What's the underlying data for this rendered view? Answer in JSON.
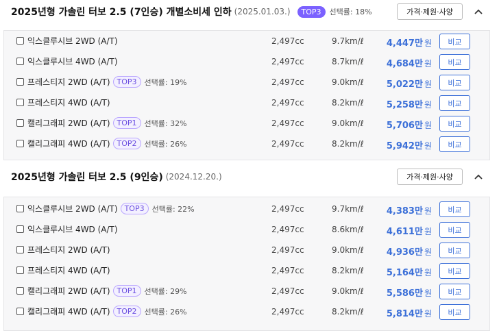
{
  "sections": [
    {
      "title": "2025년형 가솔린 터보 2.5 (7인승) 개별소비세 인하",
      "date": "(2025.01.03.)",
      "badge": "TOP3",
      "select_rate": "선택률: 18%",
      "spec_button": "가격·제원·사양",
      "rows": [
        {
          "name": "익스클루시브 2WD (A/T)",
          "badge": "",
          "rate": "",
          "displacement": "2,497cc",
          "efficiency": "9.7km/ℓ",
          "price": "4,447만",
          "won": "원",
          "compare": "비교"
        },
        {
          "name": "익스클루시브 4WD (A/T)",
          "badge": "",
          "rate": "",
          "displacement": "2,497cc",
          "efficiency": "8.7km/ℓ",
          "price": "4,684만",
          "won": "원",
          "compare": "비교"
        },
        {
          "name": "프레스티지 2WD (A/T)",
          "badge": "TOP3",
          "rate": "선택률: 19%",
          "displacement": "2,497cc",
          "efficiency": "9.0km/ℓ",
          "price": "5,022만",
          "won": "원",
          "compare": "비교"
        },
        {
          "name": "프레스티지 4WD (A/T)",
          "badge": "",
          "rate": "",
          "displacement": "2,497cc",
          "efficiency": "8.2km/ℓ",
          "price": "5,258만",
          "won": "원",
          "compare": "비교"
        },
        {
          "name": "캘리그래피 2WD (A/T)",
          "badge": "TOP1",
          "rate": "선택률: 32%",
          "displacement": "2,497cc",
          "efficiency": "9.0km/ℓ",
          "price": "5,706만",
          "won": "원",
          "compare": "비교"
        },
        {
          "name": "캘리그래피 4WD (A/T)",
          "badge": "TOP2",
          "rate": "선택률: 26%",
          "displacement": "2,497cc",
          "efficiency": "8.2km/ℓ",
          "price": "5,942만",
          "won": "원",
          "compare": "비교"
        }
      ]
    },
    {
      "title": "2025년형 가솔린 터보 2.5 (9인승)",
      "date": "(2024.12.20.)",
      "badge": "",
      "select_rate": "",
      "spec_button": "가격·제원·사양",
      "rows": [
        {
          "name": "익스클루시브 2WD (A/T)",
          "badge": "TOP3",
          "rate": "선택률: 22%",
          "displacement": "2,497cc",
          "efficiency": "9.7km/ℓ",
          "price": "4,383만",
          "won": "원",
          "compare": "비교"
        },
        {
          "name": "익스클루시브 4WD (A/T)",
          "badge": "",
          "rate": "",
          "displacement": "2,497cc",
          "efficiency": "8.6km/ℓ",
          "price": "4,611만",
          "won": "원",
          "compare": "비교"
        },
        {
          "name": "프레스티지 2WD (A/T)",
          "badge": "",
          "rate": "",
          "displacement": "2,497cc",
          "efficiency": "9.0km/ℓ",
          "price": "4,936만",
          "won": "원",
          "compare": "비교"
        },
        {
          "name": "프레스티지 4WD (A/T)",
          "badge": "",
          "rate": "",
          "displacement": "2,497cc",
          "efficiency": "8.2km/ℓ",
          "price": "5,164만",
          "won": "원",
          "compare": "비교"
        },
        {
          "name": "캘리그래피 2WD (A/T)",
          "badge": "TOP1",
          "rate": "선택률: 29%",
          "displacement": "2,497cc",
          "efficiency": "9.0km/ℓ",
          "price": "5,586만",
          "won": "원",
          "compare": "비교"
        },
        {
          "name": "캘리그래피 4WD (A/T)",
          "badge": "TOP2",
          "rate": "선택률: 26%",
          "displacement": "2,497cc",
          "efficiency": "8.2km/ℓ",
          "price": "5,814만",
          "won": "원",
          "compare": "비교"
        }
      ]
    }
  ],
  "icons": {
    "collapse": "chevron-up-icon",
    "checkbox": "checkbox-icon"
  },
  "colors": {
    "accent": "#3b6fd8",
    "badge_purple": "#7b61ff"
  }
}
